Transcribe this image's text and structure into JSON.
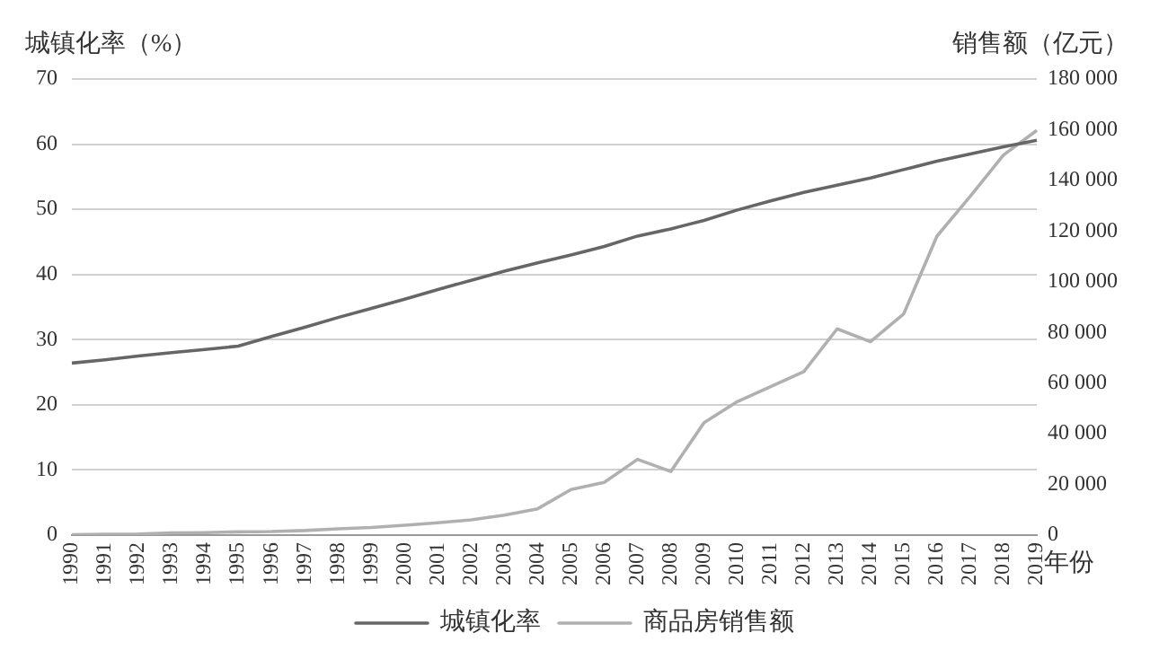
{
  "chart_data": {
    "type": "line",
    "ylabel": "城镇化率（%）",
    "y2label": "销售额（亿元）",
    "xlabel": "年份",
    "categories": [
      "1990",
      "1991",
      "1992",
      "1993",
      "1994",
      "1995",
      "1996",
      "1997",
      "1998",
      "1999",
      "2000",
      "2001",
      "2002",
      "2003",
      "2004",
      "2005",
      "2006",
      "2007",
      "2008",
      "2009",
      "2010",
      "2011",
      "2012",
      "2013",
      "2014",
      "2015",
      "2016",
      "2017",
      "2018",
      "2019"
    ],
    "series": [
      {
        "name": "城镇化率",
        "color": "#666666",
        "values": [
          26.4,
          26.9,
          27.5,
          28.0,
          28.5,
          29.0,
          30.5,
          31.9,
          33.4,
          34.8,
          36.2,
          37.7,
          39.1,
          40.5,
          41.8,
          43.0,
          44.3,
          45.9,
          47.0,
          48.3,
          49.9,
          51.3,
          52.6,
          53.7,
          54.8,
          56.1,
          57.4,
          58.5,
          59.6,
          60.6
        ]
      },
      {
        "name": "商品房销售额",
        "color": "#b0b0b0",
        "axis": "y2",
        "values": [
          200,
          300,
          400,
          900,
          1000,
          1300,
          1400,
          1800,
          2500,
          3000,
          3900,
          4900,
          6000,
          7900,
          10400,
          18000,
          20800,
          29900,
          25100,
          44400,
          52700,
          58600,
          64500,
          81400,
          76300,
          87300,
          118000,
          133700,
          150000,
          159700
        ]
      }
    ],
    "ylim": [
      0,
      70
    ],
    "yticks": [
      0,
      10,
      20,
      30,
      40,
      50,
      60,
      70
    ],
    "y2lim": [
      0,
      180000
    ],
    "y2ticks": [
      {
        "value": 0,
        "label": "0"
      },
      {
        "value": 20000,
        "label": "20 000"
      },
      {
        "value": 40000,
        "label": "40 000"
      },
      {
        "value": 60000,
        "label": "60 000"
      },
      {
        "value": 80000,
        "label": "80 000"
      },
      {
        "value": 100000,
        "label": "100 000"
      },
      {
        "value": 120000,
        "label": "120 000"
      },
      {
        "value": 140000,
        "label": "140 000"
      },
      {
        "value": 160000,
        "label": "160 000"
      },
      {
        "value": 180000,
        "label": "180 000"
      }
    ],
    "grid": "y",
    "legend": "bottom",
    "marker": "none",
    "line_style": "solid"
  }
}
